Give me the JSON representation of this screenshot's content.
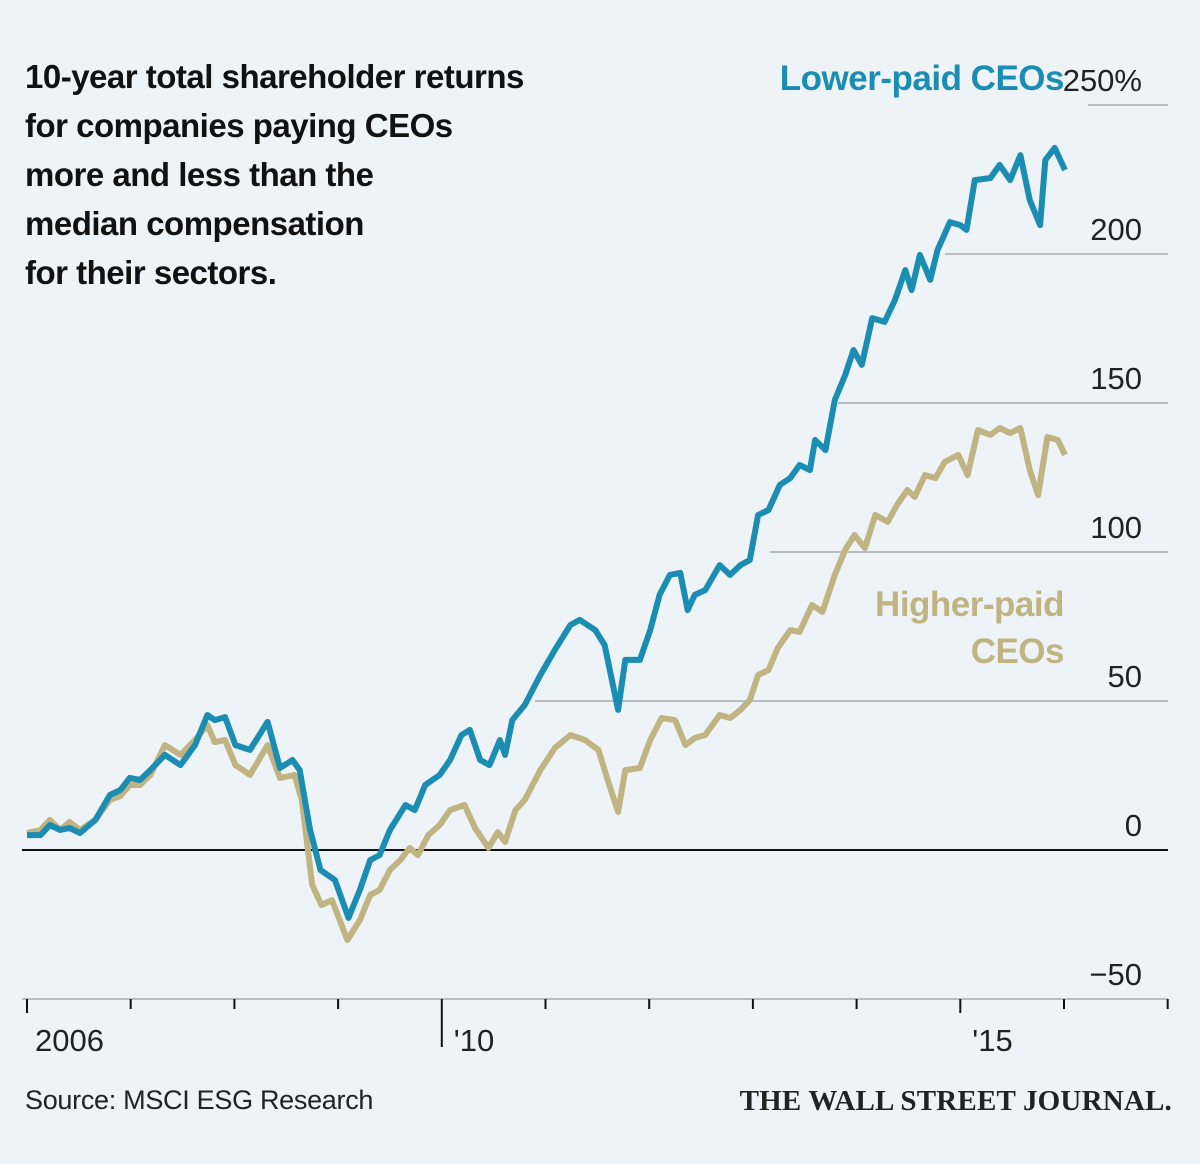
{
  "title_lines": [
    "10-year total shareholder returns",
    "for companies paying CEOs",
    "more and less than the",
    "median compensation",
    "for their sectors."
  ],
  "source": "Source: MSCI ESG Research",
  "brand": "THE WALL STREET JOURNAL.",
  "colors": {
    "lower": "#1b8db3",
    "higher": "#c1b483",
    "background": "#edf3f6"
  },
  "chart_data": {
    "type": "line",
    "title": "10-year total shareholder returns for companies paying CEOs more and less than the median compensation for their sectors.",
    "xlabel": "",
    "ylabel": "",
    "ylim": [
      -50,
      250
    ],
    "xlim": [
      2006,
      2017
    ],
    "y_ticks": [
      {
        "v": 250,
        "label": "250%"
      },
      {
        "v": 200,
        "label": "200"
      },
      {
        "v": 150,
        "label": "150"
      },
      {
        "v": 100,
        "label": "100"
      },
      {
        "v": 50,
        "label": "50"
      },
      {
        "v": 0,
        "label": "0"
      },
      {
        "v": -50,
        "label": "−50"
      }
    ],
    "x_ticks": [
      2006,
      2007,
      2008,
      2009,
      2010,
      2011,
      2012,
      2013,
      2014,
      2015,
      2016,
      2017
    ],
    "x_tick_labels": [
      {
        "v": 2006,
        "label": "2006"
      },
      {
        "v": 2010,
        "label": "'10"
      },
      {
        "v": 2015,
        "label": "'15"
      }
    ],
    "grid": true,
    "series": [
      {
        "name": "Lower-paid CEOs",
        "label_lines": [
          "Lower-paid CEOs"
        ],
        "color": "#1b8db3",
        "x": [
          2006.0,
          2006.13,
          2006.22,
          2006.32,
          2006.41,
          2006.51,
          2006.66,
          2006.8,
          2006.9,
          2006.99,
          2007.09,
          2007.19,
          2007.33,
          2007.48,
          2007.62,
          2007.74,
          2007.81,
          2007.91,
          2008.01,
          2008.15,
          2008.32,
          2008.44,
          2008.56,
          2008.63,
          2008.73,
          2008.83,
          2008.97,
          2009.1,
          2009.21,
          2009.31,
          2009.4,
          2009.5,
          2009.65,
          2009.74,
          2009.84,
          2009.98,
          2010.08,
          2010.19,
          2010.27,
          2010.37,
          2010.46,
          2010.56,
          2010.61,
          2010.68,
          2010.8,
          2010.95,
          2011.09,
          2011.24,
          2011.33,
          2011.48,
          2011.57,
          2011.7,
          2011.77,
          2011.91,
          2012.01,
          2012.1,
          2012.2,
          2012.3,
          2012.37,
          2012.44,
          2012.54,
          2012.68,
          2012.78,
          2012.88,
          2012.97,
          2013.05,
          2013.15,
          2013.26,
          2013.36,
          2013.45,
          2013.55,
          2013.6,
          2013.7,
          2013.79,
          2013.89,
          2013.97,
          2014.05,
          2014.15,
          2014.27,
          2014.37,
          2014.47,
          2014.53,
          2014.61,
          2014.71,
          2014.78,
          2014.9,
          2015.0,
          2015.06,
          2015.14,
          2015.29,
          2015.38,
          2015.48,
          2015.58,
          2015.67,
          2015.77,
          2015.82,
          2015.91,
          2016.01
        ],
        "values": [
          5.0,
          5.0,
          8.4,
          6.7,
          7.4,
          5.7,
          10.1,
          18.5,
          20.1,
          24.2,
          23.5,
          26.8,
          31.9,
          28.5,
          35.2,
          45.3,
          43.6,
          44.6,
          35.2,
          33.6,
          43.0,
          27.5,
          30.2,
          26.8,
          6.7,
          -6.7,
          -10.1,
          -22.8,
          -13.4,
          -3.4,
          -1.7,
          6.7,
          15.1,
          13.4,
          21.8,
          25.2,
          30.2,
          38.6,
          40.3,
          30.2,
          28.5,
          36.9,
          31.9,
          43.6,
          48.7,
          58.7,
          67.1,
          75.5,
          77.2,
          73.8,
          68.8,
          47.0,
          63.8,
          63.8,
          73.8,
          85.6,
          92.3,
          93.0,
          80.5,
          85.6,
          87.2,
          95.6,
          92.3,
          95.6,
          97.3,
          112.4,
          114.1,
          122.5,
          124.8,
          129.2,
          127.5,
          137.6,
          134.2,
          151.0,
          159.4,
          167.8,
          162.8,
          178.5,
          177.2,
          184.6,
          194.6,
          187.9,
          199.7,
          191.3,
          201.3,
          210.7,
          209.7,
          208.1,
          224.8,
          225.5,
          229.9,
          224.8,
          233.2,
          218.1,
          209.7,
          231.5,
          235.6,
          228.2
        ]
      },
      {
        "name": "Higher-paid CEOs",
        "label_lines": [
          "Higher-paid",
          "CEOs"
        ],
        "color": "#c1b483",
        "x": [
          2006.0,
          2006.13,
          2006.22,
          2006.32,
          2006.41,
          2006.51,
          2006.66,
          2006.8,
          2006.9,
          2006.99,
          2007.09,
          2007.19,
          2007.33,
          2007.48,
          2007.62,
          2007.74,
          2007.81,
          2007.91,
          2008.01,
          2008.15,
          2008.32,
          2008.44,
          2008.58,
          2008.65,
          2008.75,
          2008.84,
          2008.94,
          2009.09,
          2009.21,
          2009.31,
          2009.4,
          2009.5,
          2009.6,
          2009.69,
          2009.77,
          2009.87,
          2009.98,
          2010.08,
          2010.22,
          2010.32,
          2010.45,
          2010.54,
          2010.61,
          2010.71,
          2010.8,
          2010.95,
          2011.09,
          2011.24,
          2011.38,
          2011.51,
          2011.6,
          2011.7,
          2011.77,
          2011.91,
          2012.01,
          2012.12,
          2012.25,
          2012.35,
          2012.44,
          2012.54,
          2012.68,
          2012.78,
          2012.88,
          2012.97,
          2013.05,
          2013.15,
          2013.24,
          2013.36,
          2013.45,
          2013.57,
          2013.67,
          2013.79,
          2013.89,
          2013.98,
          2014.08,
          2014.18,
          2014.3,
          2014.39,
          2014.49,
          2014.56,
          2014.66,
          2014.76,
          2014.85,
          2014.98,
          2015.07,
          2015.17,
          2015.29,
          2015.38,
          2015.48,
          2015.58,
          2015.67,
          2015.75,
          2015.84,
          2015.94,
          2016.01
        ],
        "values": [
          5.7,
          6.7,
          10.1,
          6.7,
          9.4,
          6.7,
          10.1,
          16.8,
          18.1,
          21.8,
          21.8,
          25.2,
          35.2,
          31.9,
          36.9,
          41.9,
          36.2,
          36.9,
          28.5,
          25.2,
          35.2,
          24.2,
          25.2,
          16.8,
          -11.7,
          -18.5,
          -16.8,
          -30.2,
          -23.5,
          -15.1,
          -13.4,
          -6.7,
          -3.4,
          0.7,
          -1.7,
          5.0,
          8.4,
          13.4,
          15.1,
          7.4,
          0.7,
          6.0,
          2.7,
          13.4,
          16.8,
          26.8,
          34.2,
          38.6,
          36.9,
          33.6,
          23.5,
          12.8,
          26.8,
          27.5,
          36.9,
          44.3,
          43.6,
          35.2,
          37.6,
          38.6,
          45.3,
          44.3,
          47.0,
          50.3,
          58.7,
          60.4,
          67.8,
          73.8,
          73.2,
          82.2,
          79.9,
          92.3,
          100.7,
          105.7,
          101.3,
          112.4,
          110.1,
          115.8,
          120.8,
          118.5,
          125.8,
          124.8,
          130.2,
          132.6,
          125.8,
          140.9,
          139.3,
          141.6,
          139.9,
          141.6,
          127.5,
          119.1,
          138.6,
          137.6,
          132.6
        ]
      }
    ]
  }
}
